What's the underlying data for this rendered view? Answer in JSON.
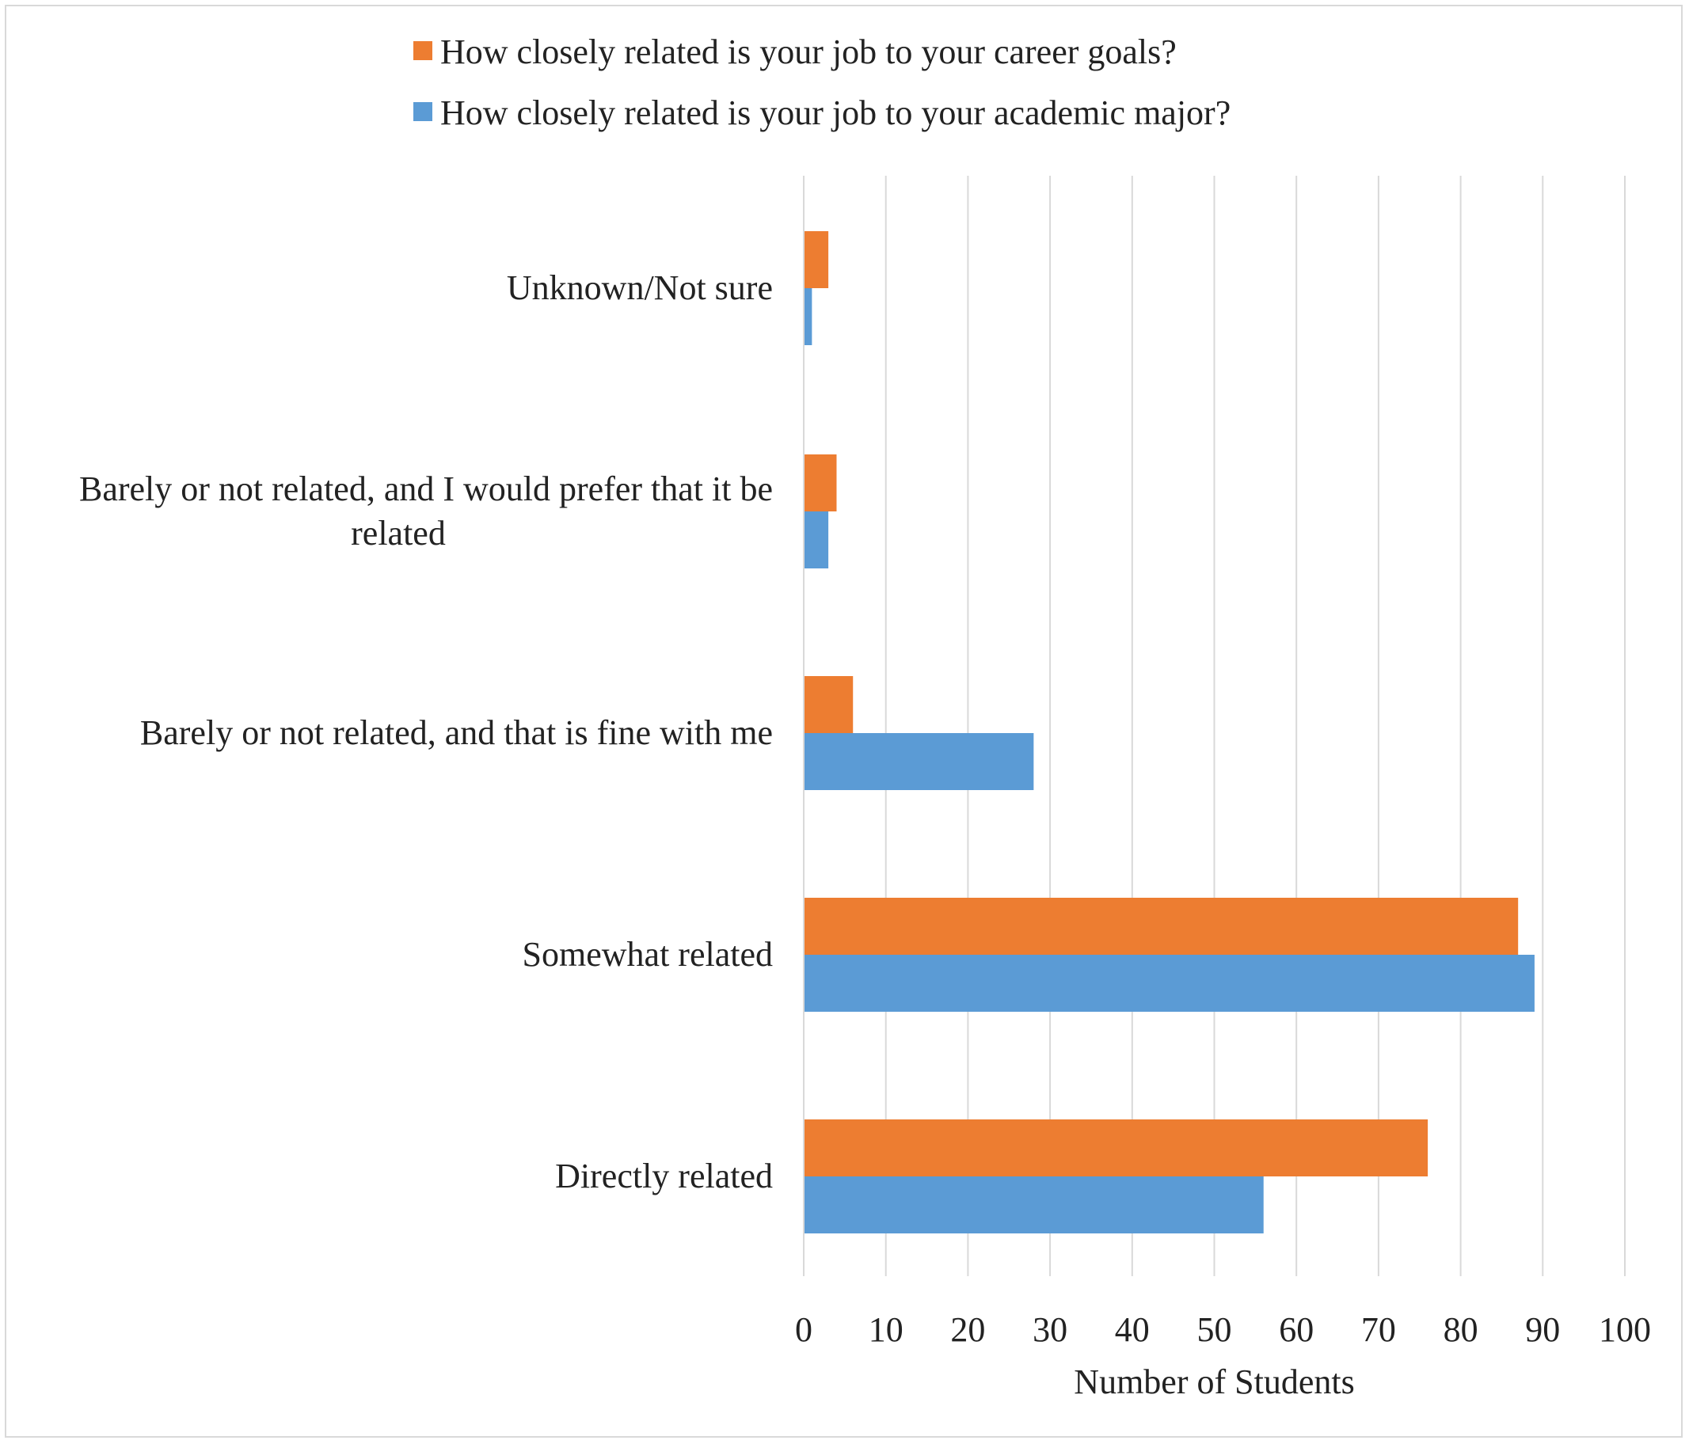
{
  "chart_data": {
    "type": "bar",
    "orientation": "horizontal",
    "categories": [
      "Unknown/Not sure",
      [
        "Barely or not related, and I would prefer that it be",
        "related"
      ],
      "Barely or not related, and that is fine with me",
      "Somewhat related",
      "Directly related"
    ],
    "series": [
      {
        "name": "How closely related is your job to your career goals?",
        "color": "#ED7D31",
        "values": [
          3,
          4,
          6,
          87,
          76
        ]
      },
      {
        "name": "How closely related is your job to your academic major?",
        "color": "#5B9BD5",
        "values": [
          1,
          3,
          28,
          89,
          56
        ]
      }
    ],
    "xlabel": "Number of Students",
    "xlim": [
      0,
      100
    ],
    "xticks": [
      0,
      10,
      20,
      30,
      40,
      50,
      60,
      70,
      80,
      90,
      100
    ],
    "grid": "vertical",
    "gridline_color": "#d9d9d9",
    "legend_position": "top"
  }
}
